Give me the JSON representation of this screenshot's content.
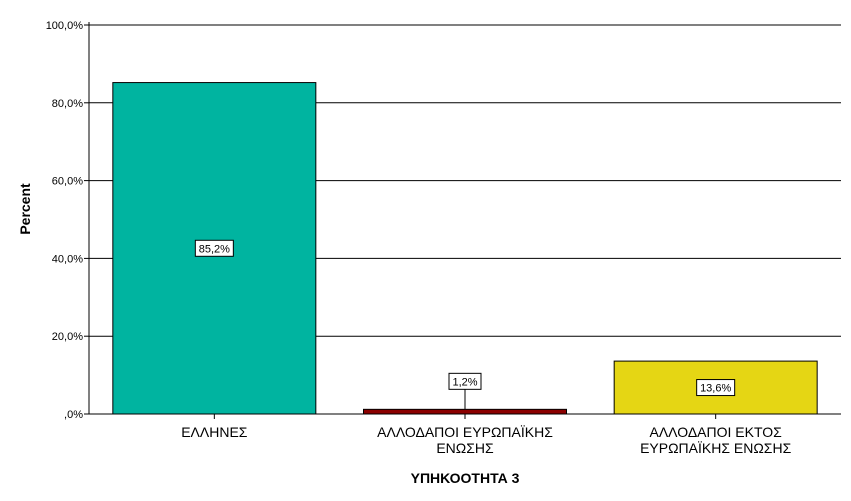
{
  "chart_data": {
    "type": "bar",
    "title": "",
    "xlabel": "ΥΠΗΚΟΟΤΗΤΑ 3",
    "ylabel": "Percent",
    "ylim": [
      0,
      100
    ],
    "yticks": [
      "0",
      "20",
      "40",
      "60",
      "80",
      "100"
    ],
    "ytick_labels": [
      ",0%",
      "20,0%",
      "40,0%",
      "60,0%",
      "80,0%",
      "100,0%"
    ],
    "grid": true,
    "legend": "none",
    "categories": [
      [
        "ΕΛΛΗΝΕΣ"
      ],
      [
        "ΑΛΛΟΔΑΠΟΙ ΕΥΡΩΠΑΪΚΗΣ",
        "ΕΝΩΣΗΣ"
      ],
      [
        "ΑΛΛΟΔΑΠΟΙ ΕΚΤΟΣ",
        "ΕΥΡΩΠΑΪΚΗΣ ΕΝΩΣΗΣ"
      ]
    ],
    "values": [
      85.2,
      1.2,
      13.6
    ],
    "data_labels": [
      "85,2%",
      "1,2%",
      "13,6%"
    ],
    "colors": [
      "#00b4a0",
      "#8b0000",
      "#e5d614"
    ]
  }
}
